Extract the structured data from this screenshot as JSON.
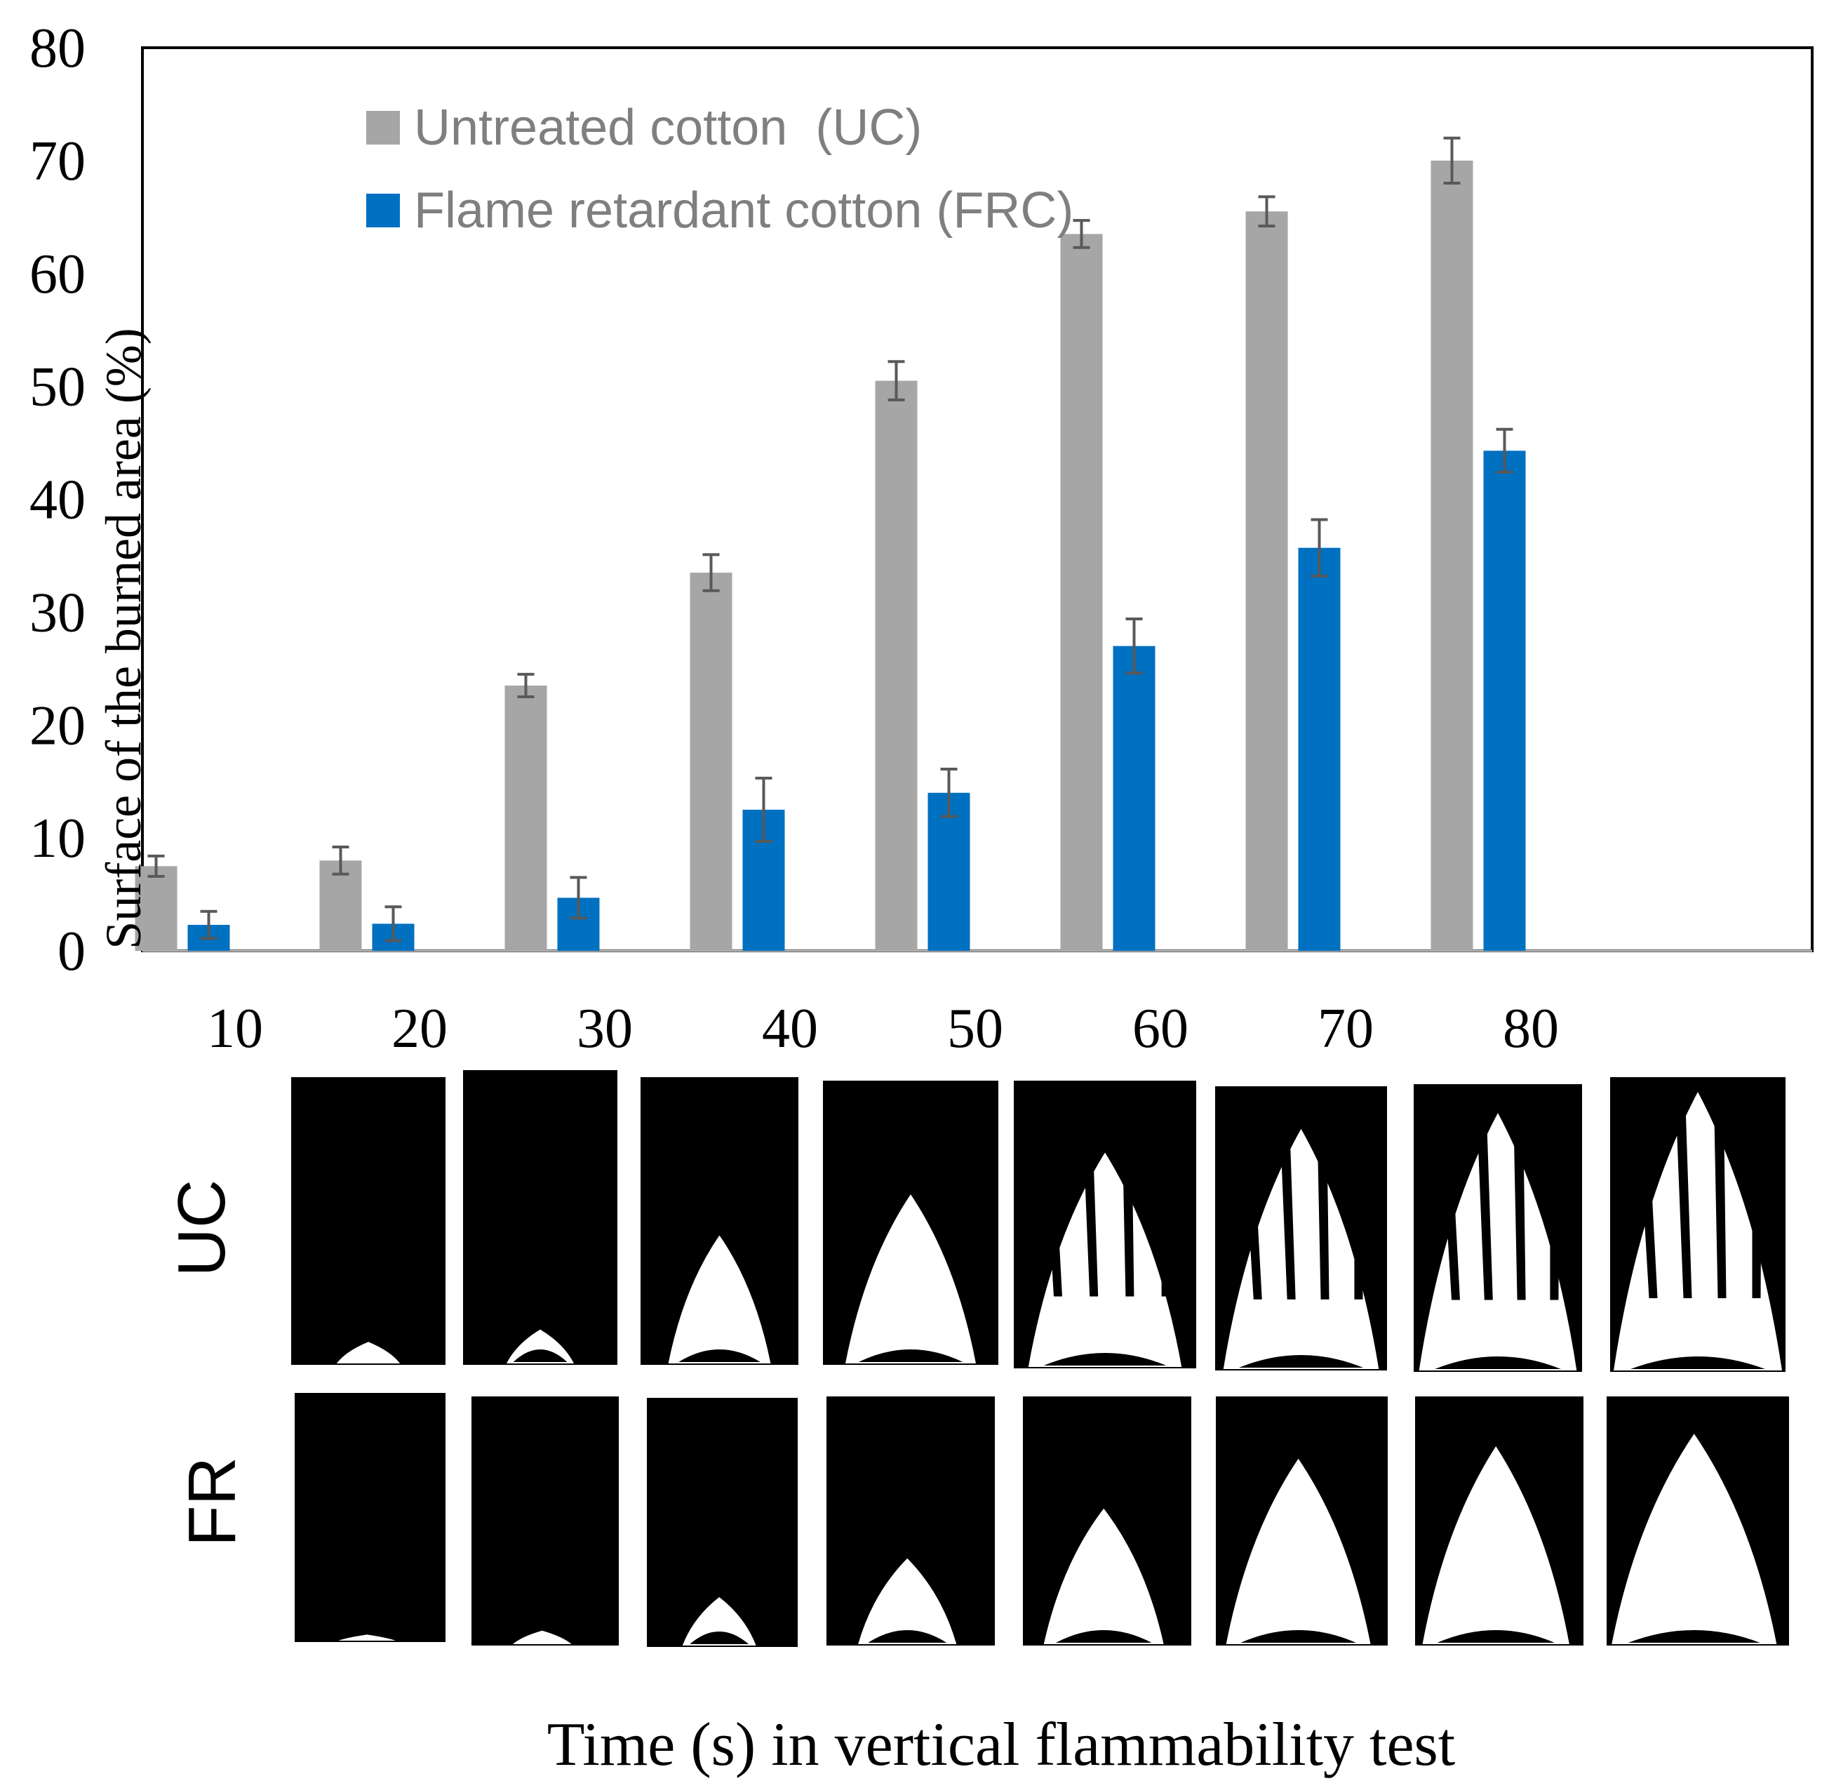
{
  "chart_data": {
    "type": "bar",
    "categories": [
      "10",
      "20",
      "30",
      "40",
      "50",
      "60",
      "70",
      "80"
    ],
    "series": [
      {
        "name": "Untreated cotton  (UC)",
        "color": "#a6a6a6",
        "values": [
          7.5,
          8.0,
          23.5,
          33.5,
          50.5,
          63.5,
          65.5,
          70.0
        ],
        "errors": [
          0.9,
          1.2,
          1.0,
          1.6,
          1.7,
          1.2,
          1.3,
          2.0
        ]
      },
      {
        "name": "Flame retardant cotton (FRC)",
        "color": "#0070c0",
        "values": [
          2.3,
          2.4,
          4.7,
          12.5,
          14.0,
          27.0,
          35.7,
          44.3
        ],
        "errors": [
          1.2,
          1.5,
          1.8,
          2.8,
          2.1,
          2.4,
          2.5,
          1.9
        ]
      }
    ],
    "ylabel": "Surface of the burned area (%)",
    "xlabel": "Time (s) in vertical flammability test",
    "ylim": [
      0,
      80
    ],
    "yticks": [
      0,
      10,
      20,
      30,
      40,
      50,
      60,
      70,
      80
    ],
    "legend_position": "top-left",
    "grid": false
  },
  "images": {
    "row_labels": [
      "UC",
      "FR"
    ],
    "time_labels": [
      "10",
      "20",
      "30",
      "40",
      "50",
      "60",
      "70",
      "80"
    ],
    "uc_burn_fraction": [
      0.08,
      0.12,
      0.45,
      0.6,
      0.75,
      0.85,
      0.9,
      0.95
    ],
    "fr_burn_fraction": [
      0.03,
      0.06,
      0.2,
      0.35,
      0.55,
      0.75,
      0.8,
      0.85
    ]
  }
}
